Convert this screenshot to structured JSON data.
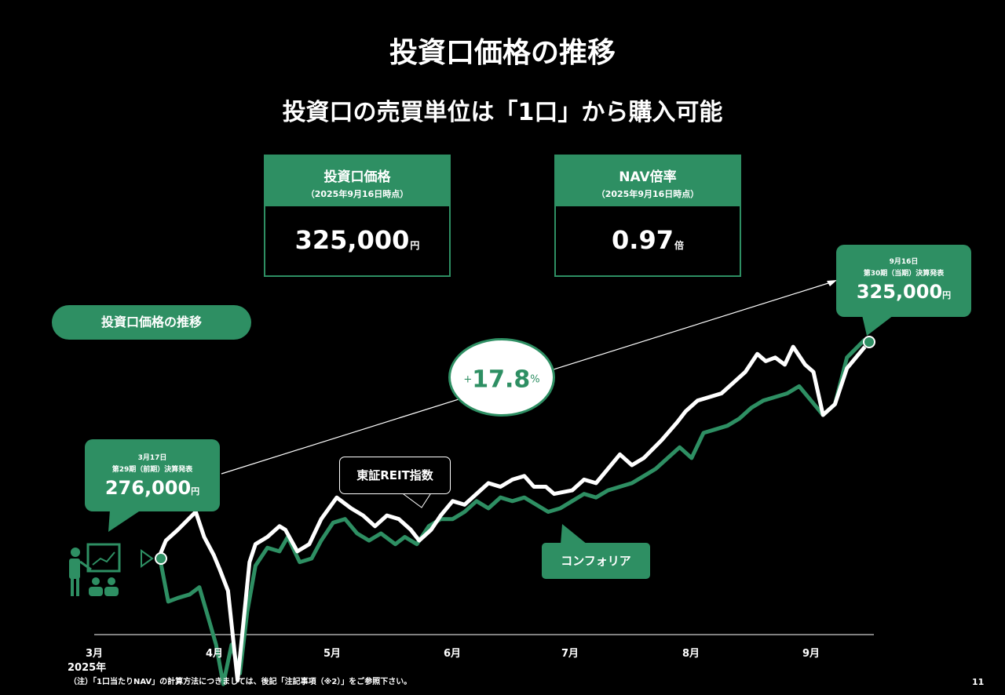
{
  "header": {
    "title": "投資口価格の推移",
    "subtitle": "投資口の売買単位は「1口」から購入可能"
  },
  "boxes": {
    "price": {
      "label": "投資口価格",
      "date": "（2025年9月16日時点）",
      "value": "325,000",
      "unit": "円"
    },
    "nav": {
      "label": "NAV倍率",
      "date": "（2025年9月16日時点）",
      "value": "0.97",
      "unit": "倍"
    }
  },
  "section_label": "投資口価格の推移",
  "growth": {
    "sign": "+",
    "value": "17.8",
    "unit": "%"
  },
  "callouts": {
    "start": {
      "date": "3月17日",
      "period": "第29期（前期）決算発表",
      "value": "276,000",
      "unit": "円"
    },
    "end": {
      "date": "9月16日",
      "period": "第30期（当期）決算発表",
      "value": "325,000",
      "unit": "円"
    }
  },
  "legend": {
    "reit_index": "東証REIT指数",
    "comforia": "コンフォリア"
  },
  "x_axis": {
    "ticks": [
      "3月",
      "4月",
      "5月",
      "6月",
      "7月",
      "8月",
      "9月"
    ],
    "year": "2025年"
  },
  "footnote": "（注）「1口当たりNAV」の計算方法につきましては、後記「注記事項（※2）」をご参照下さい。",
  "page_number": "11",
  "colors": {
    "accent": "#2e8f63",
    "background": "#000000",
    "index_line": "#ffffff"
  },
  "icons": {
    "presenter": "presenter-icon"
  },
  "chart_data": {
    "type": "line",
    "x_unit": "month",
    "series": [
      {
        "name": "東証REIT指数",
        "color": "#ffffff",
        "points": [
          [
            3.55,
            0.5
          ],
          [
            3.6,
            2.5
          ],
          [
            3.7,
            4.0
          ],
          [
            3.85,
            6.5
          ],
          [
            3.92,
            3.0
          ],
          [
            4.0,
            0.5
          ],
          [
            4.05,
            -1.5
          ],
          [
            4.12,
            -4.5
          ],
          [
            4.2,
            -17.0
          ],
          [
            4.3,
            -0.5
          ],
          [
            4.35,
            2.0
          ],
          [
            4.45,
            3.0
          ],
          [
            4.55,
            4.5
          ],
          [
            4.6,
            4.0
          ],
          [
            4.7,
            1.0
          ],
          [
            4.8,
            2.0
          ],
          [
            4.9,
            5.5
          ],
          [
            5.03,
            8.5
          ],
          [
            5.15,
            7.0
          ],
          [
            5.25,
            6.0
          ],
          [
            5.35,
            4.5
          ],
          [
            5.45,
            6.0
          ],
          [
            5.55,
            5.5
          ],
          [
            5.65,
            4.0
          ],
          [
            5.72,
            2.5
          ],
          [
            5.82,
            4.0
          ],
          [
            5.9,
            6.0
          ],
          [
            6.0,
            8.0
          ],
          [
            6.1,
            7.5
          ],
          [
            6.2,
            9.0
          ],
          [
            6.3,
            10.5
          ],
          [
            6.4,
            10.0
          ],
          [
            6.5,
            11.0
          ],
          [
            6.6,
            11.5
          ],
          [
            6.68,
            10.0
          ],
          [
            6.78,
            10.0
          ],
          [
            6.85,
            9.0
          ],
          [
            7.0,
            9.5
          ],
          [
            7.1,
            11.0
          ],
          [
            7.2,
            10.5
          ],
          [
            7.3,
            12.5
          ],
          [
            7.4,
            14.5
          ],
          [
            7.5,
            13.0
          ],
          [
            7.6,
            14.0
          ],
          [
            7.75,
            16.5
          ],
          [
            7.88,
            19.0
          ],
          [
            7.95,
            20.5
          ],
          [
            8.05,
            22.0
          ],
          [
            8.15,
            22.5
          ],
          [
            8.25,
            23.0
          ],
          [
            8.35,
            24.5
          ],
          [
            8.45,
            26.0
          ],
          [
            8.55,
            28.5
          ],
          [
            8.62,
            27.5
          ],
          [
            8.7,
            28.0
          ],
          [
            8.78,
            27.0
          ],
          [
            8.85,
            29.5
          ],
          [
            8.95,
            27.0
          ],
          [
            9.02,
            26.0
          ],
          [
            9.1,
            20.0
          ],
          [
            9.2,
            21.5
          ],
          [
            9.3,
            26.5
          ],
          [
            9.45,
            29.5
          ]
        ]
      },
      {
        "name": "コンフォリア",
        "color": "#2e8f63",
        "points": [
          [
            3.55,
            0.0
          ],
          [
            3.62,
            -6.0
          ],
          [
            3.7,
            -5.5
          ],
          [
            3.8,
            -5.0
          ],
          [
            3.88,
            -4.0
          ],
          [
            3.95,
            -8.0
          ],
          [
            4.02,
            -12.0
          ],
          [
            4.08,
            -17.5
          ],
          [
            4.15,
            -12.0
          ],
          [
            4.22,
            -16.0
          ],
          [
            4.28,
            -7.5
          ],
          [
            4.35,
            -1.0
          ],
          [
            4.45,
            1.5
          ],
          [
            4.55,
            1.0
          ],
          [
            4.62,
            3.0
          ],
          [
            4.72,
            -0.5
          ],
          [
            4.82,
            0.0
          ],
          [
            4.9,
            2.5
          ],
          [
            5.0,
            5.0
          ],
          [
            5.1,
            5.5
          ],
          [
            5.2,
            3.5
          ],
          [
            5.3,
            2.5
          ],
          [
            5.4,
            3.5
          ],
          [
            5.52,
            2.0
          ],
          [
            5.6,
            3.0
          ],
          [
            5.7,
            2.0
          ],
          [
            5.8,
            4.5
          ],
          [
            5.9,
            5.5
          ],
          [
            6.0,
            5.5
          ],
          [
            6.1,
            6.5
          ],
          [
            6.2,
            8.0
          ],
          [
            6.3,
            7.0
          ],
          [
            6.4,
            8.5
          ],
          [
            6.5,
            8.0
          ],
          [
            6.6,
            8.5
          ],
          [
            6.7,
            7.5
          ],
          [
            6.8,
            6.5
          ],
          [
            6.9,
            7.0
          ],
          [
            7.0,
            8.0
          ],
          [
            7.1,
            9.0
          ],
          [
            7.2,
            8.5
          ],
          [
            7.3,
            9.5
          ],
          [
            7.4,
            10.0
          ],
          [
            7.5,
            10.5
          ],
          [
            7.6,
            11.5
          ],
          [
            7.7,
            12.5
          ],
          [
            7.8,
            14.0
          ],
          [
            7.9,
            15.5
          ],
          [
            8.0,
            14.0
          ],
          [
            8.1,
            17.5
          ],
          [
            8.2,
            18.0
          ],
          [
            8.3,
            18.5
          ],
          [
            8.4,
            19.5
          ],
          [
            8.5,
            21.0
          ],
          [
            8.6,
            22.0
          ],
          [
            8.7,
            22.5
          ],
          [
            8.8,
            23.0
          ],
          [
            8.9,
            24.0
          ],
          [
            9.0,
            22.0
          ],
          [
            9.1,
            20.0
          ],
          [
            9.2,
            21.5
          ],
          [
            9.3,
            28.0
          ],
          [
            9.45,
            30.5
          ]
        ]
      }
    ],
    "ylim": [
      -20,
      32
    ],
    "xlim": [
      3.0,
      9.5
    ],
    "start_value": 276000,
    "end_value": 325000,
    "change_percent": 17.8,
    "grid": false
  }
}
